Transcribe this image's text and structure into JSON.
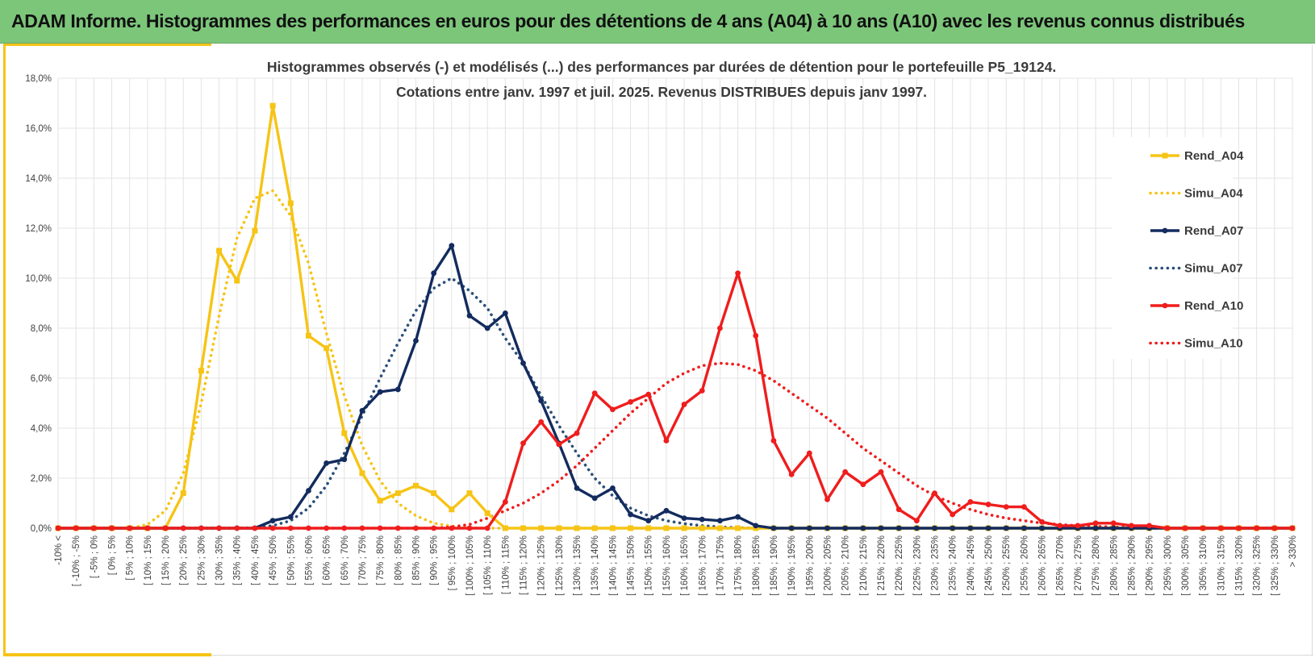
{
  "header": {
    "title": "ADAM Informe. Histogrammes des performances en euros pour des détentions de 4 ans (A04) à 10 ans (A10) avec les revenus connus distribués"
  },
  "chart_data": {
    "type": "line",
    "title": "Histogrammes observés (-) et modélisés (...) des performances par durées de détention pour le portefeuille P5_19124.",
    "subtitle": "Cotations entre janv. 1997 et juil. 2025. Revenus DISTRIBUES depuis janv 1997.",
    "xlabel": "",
    "ylabel": "",
    "ylim": [
      0,
      18
    ],
    "yticks": [
      "0,0%",
      "2,0%",
      "4,0%",
      "6,0%",
      "8,0%",
      "10,0%",
      "12,0%",
      "14,0%",
      "16,0%",
      "18,0%"
    ],
    "grid": true,
    "legend_position": "right",
    "categories": [
      "-10% <",
      "[ -10% ; -5%",
      "[ -5% ; 0%",
      "[ 0% ; 5%",
      "[ 5% ; 10%",
      "[ 10% ; 15%",
      "[ 15% ; 20%",
      "[ 20% ; 25%",
      "[ 25% ; 30%",
      "[ 30% ; 35%",
      "[ 35% ; 40%",
      "[ 40% ; 45%",
      "[ 45% ; 50%",
      "[ 50% ; 55%",
      "[ 55% ; 60%",
      "[ 60% ; 65%",
      "[ 65% ; 70%",
      "[ 70% ; 75%",
      "[ 75% ; 80%",
      "[ 80% ; 85%",
      "[ 85% ; 90%",
      "[ 90% ; 95%",
      "[ 95% ; 100%",
      "[ 100% ; 105%",
      "[ 105% ; 110%",
      "[ 110% ; 115%",
      "[ 115% ; 120%",
      "[ 120% ; 125%",
      "[ 125% ; 130%",
      "[ 130% ; 135%",
      "[ 135% ; 140%",
      "[ 140% ; 145%",
      "[ 145% ; 150%",
      "[ 150% ; 155%",
      "[ 155% ; 160%",
      "[ 160% ; 165%",
      "[ 165% ; 170%",
      "[ 170% ; 175%",
      "[ 175% ; 180%",
      "[ 180% ; 185%",
      "[ 185% ; 190%",
      "[ 190% ; 195%",
      "[ 195% ; 200%",
      "[ 200% ; 205%",
      "[ 205% ; 210%",
      "[ 210% ; 215%",
      "[ 215% ; 220%",
      "[ 220% ; 225%",
      "[ 225% ; 230%",
      "[ 230% ; 235%",
      "[ 235% ; 240%",
      "[ 240% ; 245%",
      "[ 245% ; 250%",
      "[ 250% ; 255%",
      "[ 255% ; 260%",
      "[ 260% ; 265%",
      "[ 265% ; 270%",
      "[ 270% ; 275%",
      "[ 275% ; 280%",
      "[ 280% ; 285%",
      "[ 285% ; 290%",
      "[ 290% ; 295%",
      "[ 295% ; 300%",
      "[ 300% ; 305%",
      "[ 305% ; 310%",
      "[ 310% ; 315%",
      "[ 315% ; 320%",
      "[ 320% ; 325%",
      "[ 325% ; 330%",
      "> 330%"
    ],
    "series": [
      {
        "name": "Rend_A04",
        "color": "#f6c416",
        "style": "solid",
        "marker": "square",
        "values": [
          0,
          0,
          0,
          0,
          0,
          0,
          0,
          1.4,
          6.3,
          11.1,
          9.9,
          11.9,
          16.9,
          13.0,
          7.7,
          7.2,
          3.8,
          2.2,
          1.1,
          1.4,
          1.7,
          1.4,
          0.75,
          1.4,
          0.6,
          0,
          0,
          0,
          0,
          0,
          0,
          0,
          0,
          0,
          0,
          0,
          0,
          0,
          0,
          0,
          0,
          0,
          0,
          0,
          0,
          0,
          0,
          0,
          0,
          0,
          0,
          0,
          0,
          0,
          0,
          0,
          0,
          0,
          0,
          0,
          0,
          0,
          0,
          0,
          0,
          0,
          0,
          0,
          0,
          0
        ]
      },
      {
        "name": "Simu_A04",
        "color": "#f6c416",
        "style": "dotted",
        "marker": "none",
        "values": [
          0,
          0,
          0,
          0,
          0,
          0.15,
          0.7,
          2.2,
          5.0,
          8.5,
          11.6,
          13.2,
          13.5,
          12.5,
          10.6,
          7.8,
          5.3,
          3.3,
          1.9,
          1.0,
          0.5,
          0.2,
          0.08,
          0.02,
          0,
          0,
          0,
          0,
          0,
          0,
          0,
          0,
          0,
          0,
          0,
          0,
          0,
          0,
          0,
          0,
          0,
          0,
          0,
          0,
          0,
          0,
          0,
          0,
          0,
          0,
          0,
          0,
          0,
          0,
          0,
          0,
          0,
          0,
          0,
          0,
          0,
          0,
          0,
          0,
          0,
          0,
          0,
          0,
          0,
          0
        ]
      },
      {
        "name": "Rend_A07",
        "color": "#132b5e",
        "style": "solid",
        "marker": "circle",
        "values": [
          0,
          0,
          0,
          0,
          0,
          0,
          0,
          0,
          0,
          0,
          0,
          0,
          0.3,
          0.45,
          1.5,
          2.6,
          2.75,
          4.7,
          5.45,
          5.55,
          7.5,
          10.2,
          11.3,
          8.5,
          8.0,
          8.6,
          6.6,
          5.1,
          3.4,
          1.6,
          1.2,
          1.6,
          0.55,
          0.3,
          0.7,
          0.4,
          0.35,
          0.3,
          0.45,
          0.1,
          0,
          0,
          0,
          0,
          0,
          0,
          0,
          0,
          0,
          0,
          0,
          0,
          0,
          0,
          0,
          0,
          0,
          0,
          0,
          0,
          0,
          0,
          0,
          0,
          0,
          0,
          0,
          0,
          0,
          0
        ]
      },
      {
        "name": "Simu_A07",
        "color": "#2b4f78",
        "style": "dotted",
        "marker": "none",
        "values": [
          0,
          0,
          0,
          0,
          0,
          0,
          0,
          0,
          0,
          0,
          0,
          0.02,
          0.1,
          0.3,
          0.8,
          1.7,
          3.0,
          4.5,
          6.0,
          7.4,
          8.7,
          9.6,
          10.0,
          9.5,
          8.8,
          7.6,
          6.6,
          5.3,
          4.1,
          3.0,
          2.0,
          1.3,
          0.8,
          0.5,
          0.3,
          0.18,
          0.1,
          0.05,
          0.02,
          0,
          0,
          0,
          0,
          0,
          0,
          0,
          0,
          0,
          0,
          0,
          0,
          0,
          0,
          0,
          0,
          0,
          0,
          0,
          0,
          0,
          0,
          0,
          0,
          0,
          0,
          0,
          0,
          0,
          0,
          0
        ]
      },
      {
        "name": "Rend_A10",
        "color": "#ef1d1d",
        "style": "solid",
        "marker": "circle",
        "values": [
          0,
          0,
          0,
          0,
          0,
          0,
          0,
          0,
          0,
          0,
          0,
          0,
          0,
          0,
          0,
          0,
          0,
          0,
          0,
          0,
          0,
          0,
          0,
          0,
          0,
          1.05,
          3.4,
          4.25,
          3.35,
          3.8,
          5.4,
          4.75,
          5.05,
          5.35,
          3.5,
          4.95,
          5.5,
          8.0,
          10.2,
          7.7,
          3.5,
          2.15,
          3.0,
          1.15,
          2.25,
          1.75,
          2.25,
          0.75,
          0.3,
          1.4,
          0.55,
          1.05,
          0.95,
          0.85,
          0.85,
          0.25,
          0.1,
          0.1,
          0.2,
          0.2,
          0.1,
          0.1,
          0,
          0,
          0,
          0,
          0,
          0,
          0,
          0
        ]
      },
      {
        "name": "Simu_A10",
        "color": "#ef1d1d",
        "style": "dotted",
        "marker": "none",
        "values": [
          0,
          0,
          0,
          0,
          0,
          0,
          0,
          0,
          0,
          0,
          0,
          0,
          0,
          0,
          0,
          0,
          0,
          0,
          0,
          0,
          0,
          0,
          0.05,
          0.15,
          0.4,
          0.7,
          1.0,
          1.4,
          1.9,
          2.5,
          3.2,
          3.9,
          4.6,
          5.2,
          5.8,
          6.2,
          6.5,
          6.6,
          6.55,
          6.3,
          5.9,
          5.4,
          4.9,
          4.4,
          3.8,
          3.2,
          2.7,
          2.2,
          1.7,
          1.3,
          1.0,
          0.75,
          0.55,
          0.4,
          0.3,
          0.2,
          0.15,
          0.1,
          0.07,
          0.05,
          0.03,
          0.02,
          0.01,
          0,
          0,
          0,
          0,
          0,
          0,
          0
        ]
      }
    ]
  }
}
